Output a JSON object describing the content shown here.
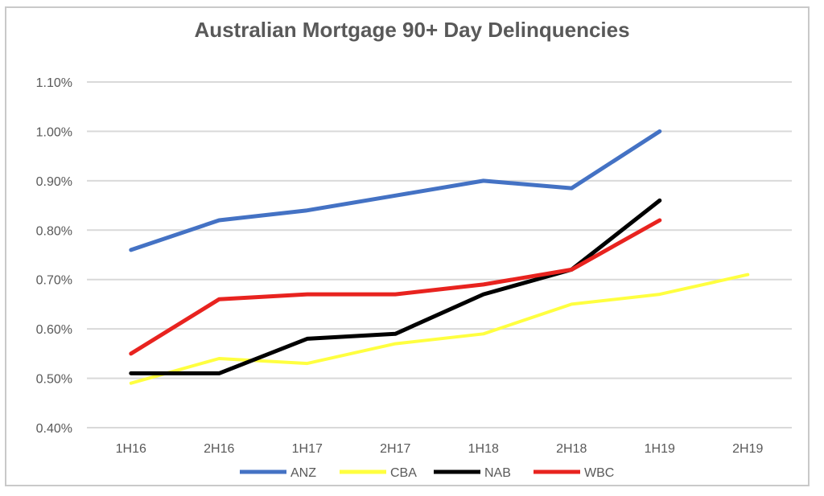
{
  "chart_data": {
    "type": "line",
    "title": "Australian Mortgage 90+ Day Delinquencies",
    "xlabel": "",
    "ylabel": "",
    "categories": [
      "1H16",
      "2H16",
      "1H17",
      "2H17",
      "1H18",
      "2H18",
      "1H19",
      "2H19"
    ],
    "ylim": [
      0.4,
      1.1
    ],
    "yticks": [
      "0.40%",
      "0.50%",
      "0.60%",
      "0.70%",
      "0.80%",
      "0.90%",
      "1.00%",
      "1.10%"
    ],
    "grid": true,
    "legend_position": "bottom",
    "series": [
      {
        "name": "ANZ",
        "color": "#4472c4",
        "values": [
          0.76,
          0.82,
          0.84,
          0.87,
          0.9,
          0.885,
          1.0,
          null
        ]
      },
      {
        "name": "CBA",
        "color": "#ffff40",
        "values": [
          0.49,
          0.54,
          0.53,
          0.57,
          0.59,
          0.65,
          0.67,
          0.71
        ]
      },
      {
        "name": "NAB",
        "color": "#000000",
        "values": [
          0.51,
          0.51,
          0.58,
          0.59,
          0.67,
          0.72,
          0.86,
          null
        ]
      },
      {
        "name": "WBC",
        "color": "#e8231f",
        "values": [
          0.55,
          0.66,
          0.67,
          0.67,
          0.69,
          0.72,
          0.82,
          null
        ]
      }
    ]
  }
}
